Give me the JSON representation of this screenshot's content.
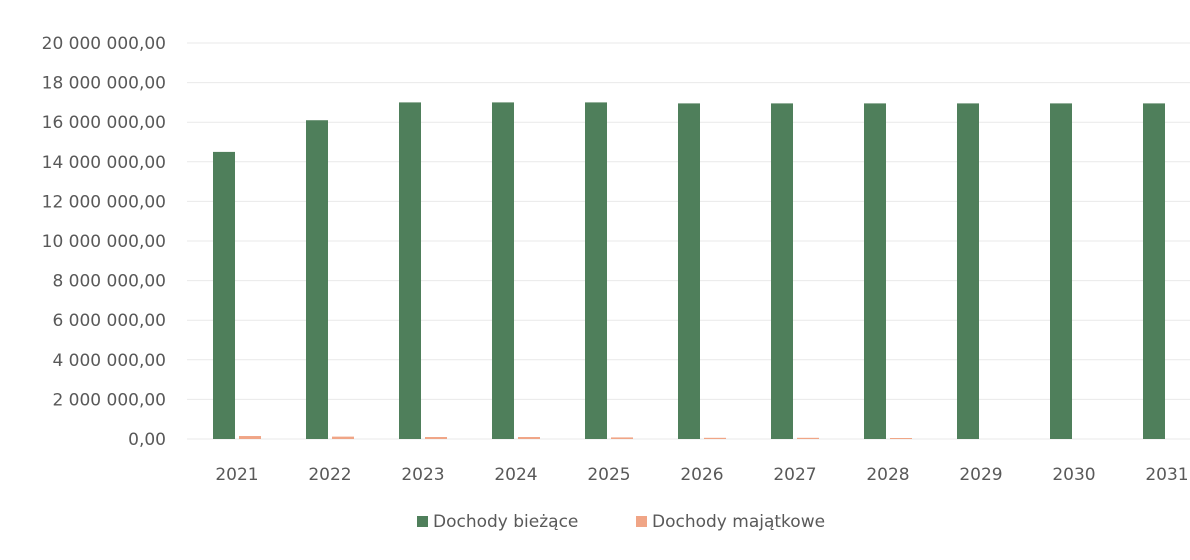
{
  "chart_data": {
    "type": "bar",
    "title": "",
    "xlabel": "",
    "ylabel": "",
    "categories": [
      "2021",
      "2022",
      "2023",
      "2024",
      "2025",
      "2026",
      "2027",
      "2028",
      "2029",
      "2030",
      "2031"
    ],
    "series": [
      {
        "name": "Dochody bieżące",
        "color": "#4f7f5b",
        "values": [
          14500000,
          16100000,
          17000000,
          17000000,
          17000000,
          16950000,
          16950000,
          16950000,
          16950000,
          16950000,
          16950000
        ]
      },
      {
        "name": "Dochody majątkowe",
        "color": "#f0a586",
        "values": [
          150000,
          120000,
          100000,
          100000,
          80000,
          60000,
          60000,
          50000,
          0,
          0,
          0
        ]
      }
    ],
    "ylim": [
      0,
      20000000
    ],
    "yticks": [
      0,
      2000000,
      4000000,
      6000000,
      8000000,
      10000000,
      12000000,
      14000000,
      16000000,
      18000000,
      20000000
    ],
    "ytick_labels": [
      "0,00",
      "2 000 000,00",
      "4 000 000,00",
      "6 000 000,00",
      "8 000 000,00",
      "10 000 000,00",
      "12 000 000,00",
      "14 000 000,00",
      "16 000 000,00",
      "18 000 000,00",
      "20 000 000,00"
    ],
    "grid": true,
    "legend_position": "bottom"
  }
}
